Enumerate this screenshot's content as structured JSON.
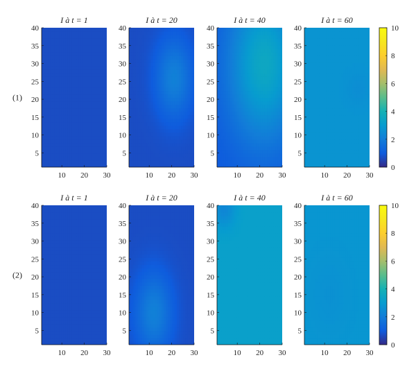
{
  "chart_data": {
    "type": "heatmap",
    "colormap": "parula",
    "grid": false,
    "grid_size": [
      30,
      40
    ],
    "xlim": [
      1,
      30
    ],
    "ylim": [
      1,
      40
    ],
    "x_ticks": [
      10,
      20,
      30
    ],
    "y_ticks": [
      5,
      10,
      15,
      20,
      25,
      30,
      35,
      40
    ],
    "colorbar": {
      "min": 0,
      "max": 10,
      "ticks": [
        0,
        2,
        4,
        6,
        8,
        10
      ],
      "placement": "right"
    },
    "rows": [
      {
        "label": "(1)",
        "panels": [
          {
            "title": "I à t = 1",
            "time": 1,
            "field": {
              "base": 0.7,
              "blobs": []
            }
          },
          {
            "title": "I à t = 20",
            "time": 20,
            "field": {
              "base": 0.7,
              "blobs": [
                {
                  "cx": 21,
                  "cy": 26,
                  "sx": 8,
                  "sy": 11,
                  "amp": 1.4
                }
              ]
            }
          },
          {
            "title": "I à t = 40",
            "time": 40,
            "field": {
              "base": 0.9,
              "blobs": [
                {
                  "cx": 22,
                  "cy": 30,
                  "sx": 16,
                  "sy": 22,
                  "amp": 2.6
                }
              ]
            }
          },
          {
            "title": "I à t = 60",
            "time": 60,
            "field": {
              "base": 2.75,
              "blobs": [
                {
                  "cx": 25,
                  "cy": 23,
                  "sx": 6,
                  "sy": 5,
                  "amp": -0.2
                }
              ]
            }
          }
        ]
      },
      {
        "label": "(2)",
        "panels": [
          {
            "title": "I à t = 1",
            "time": 1,
            "field": {
              "base": 0.7,
              "blobs": []
            }
          },
          {
            "title": "I à t = 20",
            "time": 20,
            "field": {
              "base": 0.7,
              "blobs": [
                {
                  "cx": 12,
                  "cy": 10,
                  "sx": 8,
                  "sy": 11,
                  "amp": 1.4
                }
              ]
            }
          },
          {
            "title": "I à t = 40",
            "time": 40,
            "field": {
              "base": 3.2,
              "blobs": [
                {
                  "cx": 4,
                  "cy": 39,
                  "sx": 5,
                  "sy": 5,
                  "amp": -0.9
                }
              ]
            }
          },
          {
            "title": "I à t = 60",
            "time": 60,
            "field": {
              "base": 2.8,
              "blobs": [
                {
                  "cx": 12,
                  "cy": 15,
                  "sx": 8,
                  "sy": 10,
                  "amp": -0.15
                }
              ]
            }
          }
        ]
      }
    ]
  }
}
